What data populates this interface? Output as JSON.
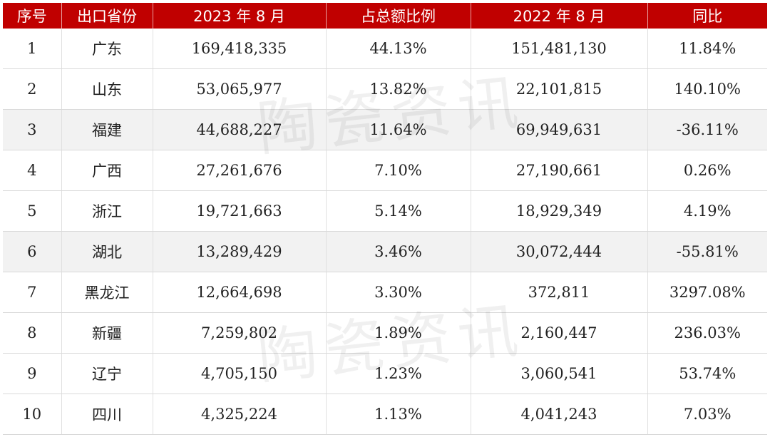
{
  "headers": [
    "序号",
    "出口省份",
    "2023 年 8 月",
    "占总额比例",
    "2022 年 8 月",
    "同比"
  ],
  "rows": [
    {
      "rank": "1",
      "province": "广东",
      "aug2023": "169,418,335",
      "share": "44.13%",
      "aug2022": "151,481,130",
      "yoy": "11.84%"
    },
    {
      "rank": "2",
      "province": "山东",
      "aug2023": "53,065,977",
      "share": "13.82%",
      "aug2022": "22,101,815",
      "yoy": "140.10%"
    },
    {
      "rank": "3",
      "province": "福建",
      "aug2023": "44,688,227",
      "share": "11.64%",
      "aug2022": "69,949,631",
      "yoy": "-36.11%"
    },
    {
      "rank": "4",
      "province": "广西",
      "aug2023": "27,261,676",
      "share": "7.10%",
      "aug2022": "27,190,661",
      "yoy": "0.26%"
    },
    {
      "rank": "5",
      "province": "浙江",
      "aug2023": "19,721,663",
      "share": "5.14%",
      "aug2022": "18,929,349",
      "yoy": "4.19%"
    },
    {
      "rank": "6",
      "province": "湖北",
      "aug2023": "13,289,429",
      "share": "3.46%",
      "aug2022": "30,072,444",
      "yoy": "-55.81%"
    },
    {
      "rank": "7",
      "province": "黑龙江",
      "aug2023": "12,664,698",
      "share": "3.30%",
      "aug2022": "372,811",
      "yoy": "3297.08%"
    },
    {
      "rank": "8",
      "province": "新疆",
      "aug2023": "7,259,802",
      "share": "1.89%",
      "aug2022": "2,160,447",
      "yoy": "236.03%"
    },
    {
      "rank": "9",
      "province": "辽宁",
      "aug2023": "4,705,150",
      "share": "1.23%",
      "aug2022": "3,060,541",
      "yoy": "53.74%"
    },
    {
      "rank": "10",
      "province": "四川",
      "aug2023": "4,325,224",
      "share": "1.13%",
      "aug2022": "4,041,243",
      "yoy": "7.03%"
    }
  ],
  "watermark": "陶瓷资讯",
  "colors": {
    "header_bg": "#c00000",
    "header_text": "#ffffff",
    "shaded_row": "#f2f2f2"
  }
}
